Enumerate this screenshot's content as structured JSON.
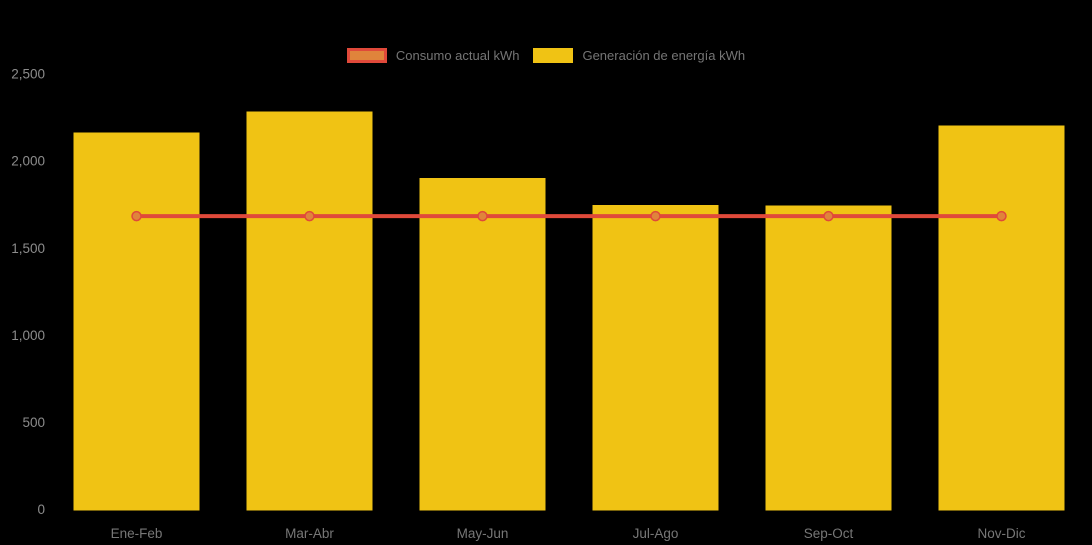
{
  "chart_data": {
    "type": "bar",
    "title": "",
    "xlabel": "",
    "ylabel": "",
    "categories": [
      "Ene-Feb",
      "Mar-Abr",
      "May-Jun",
      "Jul-Ago",
      "Sep-Oct",
      "Nov-Dic"
    ],
    "series": [
      {
        "name": "Consumo actual kWh",
        "type": "line",
        "color": "#e0493a",
        "marker_fill": "#e0843b",
        "values": [
          1690,
          1690,
          1690,
          1690,
          1690,
          1690
        ]
      },
      {
        "name": "Generación de energía kWh",
        "type": "bar",
        "color": "#f0c314",
        "values": [
          2170,
          2290,
          1910,
          1755,
          1750,
          2210
        ]
      }
    ],
    "ylim": [
      0,
      2500
    ],
    "ytick_labels": [
      "0",
      "500",
      "1,000",
      "1,500",
      "2,000",
      "2,500"
    ],
    "grid": false,
    "legend_position": "top",
    "background": "#000000",
    "axis_text_color": "#8c8c8c"
  }
}
